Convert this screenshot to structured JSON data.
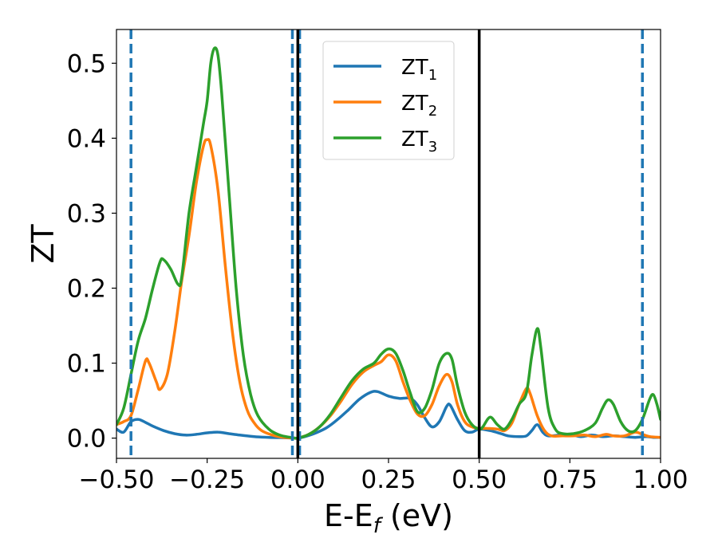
{
  "chart_data": {
    "type": "line",
    "xlabel": {
      "base": "E-E",
      "sub": "f",
      "tail": " (eV)"
    },
    "ylabel": "ZT",
    "xlim": [
      -0.5,
      1.0
    ],
    "ylim": [
      -0.027,
      0.545
    ],
    "xticks": [
      -0.5,
      -0.25,
      0.0,
      0.25,
      0.5,
      0.75,
      1.0
    ],
    "xtick_labels": [
      "−0.50",
      "−0.25",
      "0.00",
      "0.25",
      "0.50",
      "0.75",
      "1.00"
    ],
    "yticks": [
      0.0,
      0.1,
      0.2,
      0.3,
      0.4,
      0.5
    ],
    "ytick_labels": [
      "0.0",
      "0.1",
      "0.2",
      "0.3",
      "0.4",
      "0.5"
    ],
    "grid": false,
    "legend_position": "top-center",
    "vlines_dashed": {
      "x": [
        -0.46,
        -0.015,
        0.005,
        0.95
      ],
      "color": "#1f77b4"
    },
    "vlines_solid": {
      "x": [
        0.0,
        0.5
      ],
      "color": "#000000"
    },
    "series": [
      {
        "name": {
          "base": "ZT",
          "sub": "1"
        },
        "color": "#1f77b4",
        "points": [
          [
            -0.5,
            0.012
          ],
          [
            -0.48,
            0.008
          ],
          [
            -0.46,
            0.022
          ],
          [
            -0.44,
            0.025
          ],
          [
            -0.42,
            0.021
          ],
          [
            -0.4,
            0.016
          ],
          [
            -0.37,
            0.01
          ],
          [
            -0.34,
            0.006
          ],
          [
            -0.31,
            0.004
          ],
          [
            -0.28,
            0.005
          ],
          [
            -0.25,
            0.007
          ],
          [
            -0.22,
            0.008
          ],
          [
            -0.19,
            0.006
          ],
          [
            -0.16,
            0.004
          ],
          [
            -0.12,
            0.002
          ],
          [
            -0.08,
            0.001
          ],
          [
            -0.04,
            0.0005
          ],
          [
            -0.01,
            0.0
          ],
          [
            0.0,
            0.0
          ],
          [
            0.02,
            0.002
          ],
          [
            0.05,
            0.007
          ],
          [
            0.08,
            0.014
          ],
          [
            0.11,
            0.025
          ],
          [
            0.14,
            0.038
          ],
          [
            0.17,
            0.052
          ],
          [
            0.2,
            0.061
          ],
          [
            0.22,
            0.062
          ],
          [
            0.25,
            0.056
          ],
          [
            0.28,
            0.053
          ],
          [
            0.31,
            0.053
          ],
          [
            0.33,
            0.044
          ],
          [
            0.35,
            0.027
          ],
          [
            0.37,
            0.015
          ],
          [
            0.39,
            0.022
          ],
          [
            0.41,
            0.042
          ],
          [
            0.42,
            0.044
          ],
          [
            0.44,
            0.025
          ],
          [
            0.46,
            0.01
          ],
          [
            0.48,
            0.008
          ],
          [
            0.5,
            0.012
          ],
          [
            0.53,
            0.01
          ],
          [
            0.56,
            0.006
          ],
          [
            0.58,
            0.003
          ],
          [
            0.61,
            0.002
          ],
          [
            0.63,
            0.003
          ],
          [
            0.645,
            0.01
          ],
          [
            0.66,
            0.018
          ],
          [
            0.675,
            0.008
          ],
          [
            0.69,
            0.003
          ],
          [
            0.72,
            0.004
          ],
          [
            0.75,
            0.005
          ],
          [
            0.78,
            0.002
          ],
          [
            0.81,
            0.004
          ],
          [
            0.84,
            0.002
          ],
          [
            0.87,
            0.003
          ],
          [
            0.9,
            0.002
          ],
          [
            0.93,
            0.001
          ],
          [
            0.96,
            0.002
          ],
          [
            0.98,
            0.001
          ],
          [
            1.0,
            0.001
          ]
        ]
      },
      {
        "name": {
          "base": "ZT",
          "sub": "2"
        },
        "color": "#ff7f0e",
        "points": [
          [
            -0.5,
            0.018
          ],
          [
            -0.48,
            0.022
          ],
          [
            -0.46,
            0.03
          ],
          [
            -0.44,
            0.065
          ],
          [
            -0.42,
            0.103
          ],
          [
            -0.41,
            0.1
          ],
          [
            -0.39,
            0.075
          ],
          [
            -0.38,
            0.065
          ],
          [
            -0.36,
            0.085
          ],
          [
            -0.34,
            0.14
          ],
          [
            -0.32,
            0.21
          ],
          [
            -0.3,
            0.27
          ],
          [
            -0.28,
            0.34
          ],
          [
            -0.26,
            0.39
          ],
          [
            -0.25,
            0.398
          ],
          [
            -0.24,
            0.39
          ],
          [
            -0.22,
            0.33
          ],
          [
            -0.2,
            0.23
          ],
          [
            -0.18,
            0.14
          ],
          [
            -0.16,
            0.075
          ],
          [
            -0.14,
            0.038
          ],
          [
            -0.12,
            0.02
          ],
          [
            -0.1,
            0.01
          ],
          [
            -0.07,
            0.004
          ],
          [
            -0.04,
            0.001
          ],
          [
            -0.01,
            0.0
          ],
          [
            0.0,
            0.0
          ],
          [
            0.03,
            0.005
          ],
          [
            0.06,
            0.015
          ],
          [
            0.09,
            0.03
          ],
          [
            0.12,
            0.05
          ],
          [
            0.15,
            0.072
          ],
          [
            0.18,
            0.088
          ],
          [
            0.21,
            0.097
          ],
          [
            0.23,
            0.102
          ],
          [
            0.25,
            0.111
          ],
          [
            0.27,
            0.103
          ],
          [
            0.29,
            0.075
          ],
          [
            0.31,
            0.05
          ],
          [
            0.33,
            0.032
          ],
          [
            0.35,
            0.03
          ],
          [
            0.37,
            0.045
          ],
          [
            0.39,
            0.07
          ],
          [
            0.41,
            0.085
          ],
          [
            0.425,
            0.075
          ],
          [
            0.44,
            0.045
          ],
          [
            0.46,
            0.022
          ],
          [
            0.48,
            0.015
          ],
          [
            0.5,
            0.013
          ],
          [
            0.52,
            0.013
          ],
          [
            0.55,
            0.012
          ],
          [
            0.57,
            0.01
          ],
          [
            0.59,
            0.02
          ],
          [
            0.61,
            0.045
          ],
          [
            0.63,
            0.066
          ],
          [
            0.64,
            0.06
          ],
          [
            0.66,
            0.03
          ],
          [
            0.68,
            0.01
          ],
          [
            0.7,
            0.003
          ],
          [
            0.73,
            0.003
          ],
          [
            0.76,
            0.003
          ],
          [
            0.79,
            0.004
          ],
          [
            0.82,
            0.002
          ],
          [
            0.85,
            0.005
          ],
          [
            0.87,
            0.003
          ],
          [
            0.9,
            0.003
          ],
          [
            0.93,
            0.008
          ],
          [
            0.95,
            0.005
          ],
          [
            0.97,
            0.002
          ],
          [
            1.0,
            0.001
          ]
        ]
      },
      {
        "name": {
          "base": "ZT",
          "sub": "3"
        },
        "color": "#2ca02c",
        "points": [
          [
            -0.5,
            0.018
          ],
          [
            -0.48,
            0.04
          ],
          [
            -0.46,
            0.085
          ],
          [
            -0.44,
            0.13
          ],
          [
            -0.42,
            0.16
          ],
          [
            -0.4,
            0.2
          ],
          [
            -0.38,
            0.235
          ],
          [
            -0.37,
            0.238
          ],
          [
            -0.35,
            0.225
          ],
          [
            -0.33,
            0.205
          ],
          [
            -0.32,
            0.215
          ],
          [
            -0.3,
            0.3
          ],
          [
            -0.28,
            0.36
          ],
          [
            -0.26,
            0.42
          ],
          [
            -0.25,
            0.45
          ],
          [
            -0.24,
            0.5
          ],
          [
            -0.23,
            0.52
          ],
          [
            -0.22,
            0.51
          ],
          [
            -0.21,
            0.46
          ],
          [
            -0.19,
            0.33
          ],
          [
            -0.17,
            0.2
          ],
          [
            -0.15,
            0.11
          ],
          [
            -0.13,
            0.058
          ],
          [
            -0.11,
            0.03
          ],
          [
            -0.08,
            0.012
          ],
          [
            -0.05,
            0.004
          ],
          [
            -0.02,
            0.001
          ],
          [
            0.0,
            0.0
          ],
          [
            0.03,
            0.005
          ],
          [
            0.06,
            0.015
          ],
          [
            0.09,
            0.032
          ],
          [
            0.12,
            0.055
          ],
          [
            0.15,
            0.077
          ],
          [
            0.18,
            0.092
          ],
          [
            0.21,
            0.1
          ],
          [
            0.23,
            0.112
          ],
          [
            0.25,
            0.119
          ],
          [
            0.27,
            0.113
          ],
          [
            0.29,
            0.09
          ],
          [
            0.31,
            0.06
          ],
          [
            0.33,
            0.035
          ],
          [
            0.35,
            0.04
          ],
          [
            0.37,
            0.065
          ],
          [
            0.39,
            0.1
          ],
          [
            0.41,
            0.113
          ],
          [
            0.425,
            0.105
          ],
          [
            0.44,
            0.07
          ],
          [
            0.46,
            0.035
          ],
          [
            0.48,
            0.018
          ],
          [
            0.5,
            0.012
          ],
          [
            0.51,
            0.015
          ],
          [
            0.53,
            0.028
          ],
          [
            0.55,
            0.018
          ],
          [
            0.57,
            0.012
          ],
          [
            0.59,
            0.025
          ],
          [
            0.61,
            0.045
          ],
          [
            0.63,
            0.06
          ],
          [
            0.645,
            0.11
          ],
          [
            0.66,
            0.146
          ],
          [
            0.67,
            0.12
          ],
          [
            0.69,
            0.04
          ],
          [
            0.71,
            0.012
          ],
          [
            0.73,
            0.006
          ],
          [
            0.76,
            0.006
          ],
          [
            0.79,
            0.01
          ],
          [
            0.82,
            0.02
          ],
          [
            0.84,
            0.04
          ],
          [
            0.855,
            0.051
          ],
          [
            0.87,
            0.045
          ],
          [
            0.89,
            0.022
          ],
          [
            0.91,
            0.01
          ],
          [
            0.93,
            0.01
          ],
          [
            0.95,
            0.025
          ],
          [
            0.97,
            0.052
          ],
          [
            0.98,
            0.058
          ],
          [
            0.99,
            0.045
          ],
          [
            1.0,
            0.025
          ]
        ]
      }
    ]
  }
}
